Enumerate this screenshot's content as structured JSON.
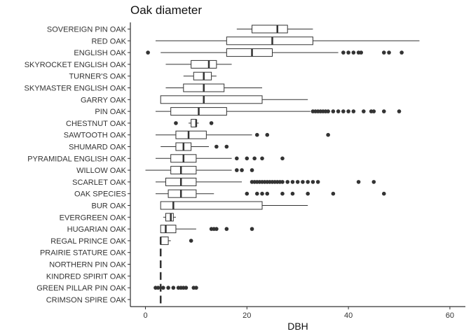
{
  "chart_data": {
    "type": "boxplot",
    "orientation": "horizontal",
    "title": "Oak diameter",
    "xlabel": "DBH",
    "ylabel": "",
    "xlim": [
      -3,
      62
    ],
    "xticks": [
      0,
      20,
      40,
      60
    ],
    "grid": false,
    "legend": "none",
    "colors": {
      "box_fill": "#ffffff",
      "line": "#333333",
      "outlier": "#333333",
      "axis": "#000000"
    },
    "categories": [
      "SOVEREIGN PIN OAK",
      "RED OAK",
      "ENGLISH OAK",
      "SKYROCKET ENGLISH OAK",
      "TURNER'S OAK",
      "SKYMASTER ENGLISH OAK",
      "GARRY OAK",
      "PIN OAK",
      "CHESTNUT OAK",
      "SAWTOOTH OAK",
      "SHUMARD OAK",
      "PYRAMIDAL ENGLISH OAK",
      "WILLOW OAK",
      "SCARLET OAK",
      "OAK SPECIES",
      "BUR OAK",
      "EVERGREEN OAK",
      "HUGARIAN OAK",
      "REGAL PRINCE OAK",
      "PRAIRIE STATURE OAK",
      "NORTHERN PIN OAK",
      "KINDRED SPIRIT OAK",
      "GREEN PILLAR PIN OAK",
      "CRIMSON SPIRE OAK"
    ],
    "boxes": [
      {
        "min": 18,
        "q1": 21,
        "median": 26,
        "q3": 28,
        "max": 33,
        "outliers": []
      },
      {
        "min": 2,
        "q1": 16,
        "median": 25,
        "q3": 33,
        "max": 54,
        "outliers": []
      },
      {
        "min": 3,
        "q1": 16,
        "median": 21,
        "q3": 25,
        "max": 38,
        "outliers": [
          0.5,
          39,
          40,
          41,
          42,
          42.5,
          47,
          48,
          50.5
        ]
      },
      {
        "min": 4,
        "q1": 9,
        "median": 12.5,
        "q3": 14,
        "max": 17,
        "outliers": []
      },
      {
        "min": 7.5,
        "q1": 9.5,
        "median": 11.5,
        "q3": 13,
        "max": 14,
        "outliers": []
      },
      {
        "min": 4,
        "q1": 7.5,
        "median": 11.5,
        "q3": 15.5,
        "max": 23,
        "outliers": []
      },
      {
        "min": 3,
        "q1": 3,
        "median": 11.5,
        "q3": 23,
        "max": 32,
        "outliers": []
      },
      {
        "min": 2,
        "q1": 5,
        "median": 10.5,
        "q3": 16,
        "max": 32.5,
        "outliers": [
          33,
          33.5,
          34,
          34.5,
          35,
          35.5,
          36,
          37,
          38,
          39,
          40,
          41,
          43,
          44.5,
          45,
          47,
          50
        ]
      },
      {
        "min": 8.5,
        "q1": 9,
        "median": 10,
        "q3": 10,
        "max": 10.5,
        "outliers": [
          6,
          13
        ]
      },
      {
        "min": 2,
        "q1": 6,
        "median": 8.5,
        "q3": 12,
        "max": 21,
        "outliers": [
          22,
          24,
          36
        ]
      },
      {
        "min": 3,
        "q1": 6,
        "median": 7.5,
        "q3": 9,
        "max": 12.5,
        "outliers": [
          14,
          16
        ]
      },
      {
        "min": 2,
        "q1": 5,
        "median": 7.5,
        "q3": 10,
        "max": 17,
        "outliers": [
          18,
          20,
          21.5,
          23,
          27
        ]
      },
      {
        "min": 0,
        "q1": 5,
        "median": 7,
        "q3": 10,
        "max": 17,
        "outliers": [
          18,
          19,
          21
        ]
      },
      {
        "min": 2,
        "q1": 4,
        "median": 7,
        "q3": 10,
        "max": 19,
        "outliers": [
          21,
          21.5,
          22,
          22.5,
          23,
          23.5,
          24,
          24.5,
          25,
          25.5,
          26,
          26.5,
          27,
          28,
          29,
          30,
          31,
          32,
          33,
          34,
          42,
          45
        ]
      },
      {
        "min": 2,
        "q1": 4.5,
        "median": 7,
        "q3": 10,
        "max": 13.5,
        "outliers": [
          20,
          22,
          23,
          24,
          27,
          29,
          32,
          37,
          47
        ]
      },
      {
        "min": 3,
        "q1": 3,
        "median": 5.5,
        "q3": 23,
        "max": 32,
        "outliers": []
      },
      {
        "min": 3.5,
        "q1": 4,
        "median": 5,
        "q3": 5.5,
        "max": 6,
        "outliers": []
      },
      {
        "min": 3,
        "q1": 3,
        "median": 4,
        "q3": 6,
        "max": 10,
        "outliers": [
          13,
          13.5,
          14,
          16,
          21
        ]
      },
      {
        "min": 3,
        "q1": 3,
        "median": 3,
        "q3": 4.5,
        "max": 5,
        "outliers": [
          9
        ]
      },
      {
        "min": 3,
        "q1": 3,
        "median": 3,
        "q3": 3,
        "max": 3,
        "outliers": []
      },
      {
        "min": 3,
        "q1": 3,
        "median": 3,
        "q3": 3,
        "max": 3,
        "outliers": []
      },
      {
        "min": 3,
        "q1": 3,
        "median": 3,
        "q3": 3,
        "max": 3,
        "outliers": []
      },
      {
        "min": 3,
        "q1": 3,
        "median": 3,
        "q3": 3,
        "max": 3,
        "outliers": [
          2,
          2.5,
          3.5,
          4.5,
          5.5,
          6.5,
          7,
          7.5,
          8,
          9.5,
          10
        ]
      },
      {
        "min": 3,
        "q1": 3,
        "median": 3,
        "q3": 3,
        "max": 3,
        "outliers": []
      }
    ]
  }
}
